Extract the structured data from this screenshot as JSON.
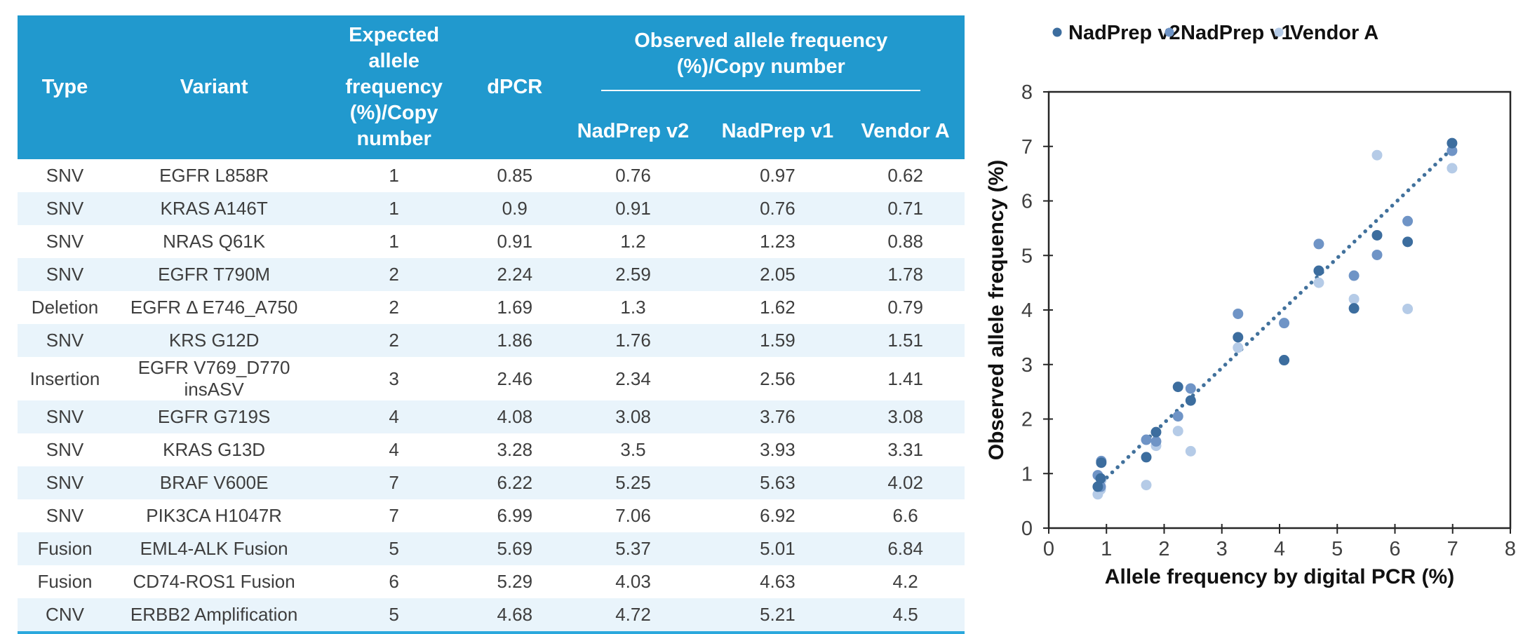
{
  "table": {
    "columns": {
      "type": "Type",
      "variant": "Variant",
      "expected": "Expected allele frequency (%)/Copy number",
      "dpcr": "dPCR"
    },
    "group_header": "Observed allele frequency (%)/Copy number",
    "sub_columns": [
      "NadPrep v2",
      "NadPrep v1",
      "Vendor A"
    ],
    "rows": [
      {
        "type": "SNV",
        "variant": "EGFR L858R",
        "expected": "1",
        "dpcr": "0.85",
        "nadprep_v2": "0.76",
        "nadprep_v1": "0.97",
        "vendor_a": "0.62"
      },
      {
        "type": "SNV",
        "variant": "KRAS A146T",
        "expected": "1",
        "dpcr": "0.9",
        "nadprep_v2": "0.91",
        "nadprep_v1": "0.76",
        "vendor_a": "0.71"
      },
      {
        "type": "SNV",
        "variant": "NRAS Q61K",
        "expected": "1",
        "dpcr": "0.91",
        "nadprep_v2": "1.2",
        "nadprep_v1": "1.23",
        "vendor_a": "0.88"
      },
      {
        "type": "SNV",
        "variant": "EGFR T790M",
        "expected": "2",
        "dpcr": "2.24",
        "nadprep_v2": "2.59",
        "nadprep_v1": "2.05",
        "vendor_a": "1.78"
      },
      {
        "type": "Deletion",
        "variant": "EGFR Δ E746_A750",
        "expected": "2",
        "dpcr": "1.69",
        "nadprep_v2": "1.3",
        "nadprep_v1": "1.62",
        "vendor_a": "0.79"
      },
      {
        "type": "SNV",
        "variant": "KRS G12D",
        "expected": "2",
        "dpcr": "1.86",
        "nadprep_v2": "1.76",
        "nadprep_v1": "1.59",
        "vendor_a": "1.51"
      },
      {
        "type": "Insertion",
        "variant": "EGFR V769_D770 insASV",
        "expected": "3",
        "dpcr": "2.46",
        "nadprep_v2": "2.34",
        "nadprep_v1": "2.56",
        "vendor_a": "1.41"
      },
      {
        "type": "SNV",
        "variant": "EGFR G719S",
        "expected": "4",
        "dpcr": "4.08",
        "nadprep_v2": "3.08",
        "nadprep_v1": "3.76",
        "vendor_a": "3.08"
      },
      {
        "type": "SNV",
        "variant": "KRAS G13D",
        "expected": "4",
        "dpcr": "3.28",
        "nadprep_v2": "3.5",
        "nadprep_v1": "3.93",
        "vendor_a": "3.31"
      },
      {
        "type": "SNV",
        "variant": "BRAF V600E",
        "expected": "7",
        "dpcr": "6.22",
        "nadprep_v2": "5.25",
        "nadprep_v1": "5.63",
        "vendor_a": "4.02"
      },
      {
        "type": "SNV",
        "variant": "PIK3CA H1047R",
        "expected": "7",
        "dpcr": "6.99",
        "nadprep_v2": "7.06",
        "nadprep_v1": "6.92",
        "vendor_a": "6.6"
      },
      {
        "type": "Fusion",
        "variant": "EML4-ALK Fusion",
        "expected": "5",
        "dpcr": "5.69",
        "nadprep_v2": "5.37",
        "nadprep_v1": "5.01",
        "vendor_a": "6.84"
      },
      {
        "type": "Fusion",
        "variant": "CD74-ROS1 Fusion",
        "expected": "6",
        "dpcr": "5.29",
        "nadprep_v2": "4.03",
        "nadprep_v1": "4.63",
        "vendor_a": "4.2"
      },
      {
        "type": "CNV",
        "variant": "ERBB2 Amplification",
        "expected": "5",
        "dpcr": "4.68",
        "nadprep_v2": "4.72",
        "nadprep_v1": "5.21",
        "vendor_a": "4.5"
      }
    ],
    "header_bg_color": "#2199CE",
    "stripe_color": "#E9F4FB",
    "bottom_line_color": "#2BA8DD"
  },
  "chart_data": {
    "type": "scatter",
    "title": "",
    "xlabel": "Allele frequency by digital PCR (%)",
    "ylabel": "Observed allele frequency (%)",
    "xlim": [
      0,
      8
    ],
    "ylim": [
      0,
      8
    ],
    "xticks": [
      0,
      1,
      2,
      3,
      4,
      5,
      6,
      7,
      8
    ],
    "yticks": [
      0,
      1,
      2,
      3,
      4,
      5,
      6,
      7,
      8
    ],
    "grid": false,
    "legend_position": "top",
    "x": [
      0.85,
      0.9,
      0.91,
      2.24,
      1.69,
      1.86,
      2.46,
      4.08,
      3.28,
      6.22,
      6.99,
      5.69,
      5.29,
      4.68
    ],
    "series": [
      {
        "name": "NadPrep v2",
        "color": "#3C6D9E",
        "values": [
          0.76,
          0.91,
          1.2,
          2.59,
          1.3,
          1.76,
          2.34,
          3.08,
          3.5,
          5.25,
          7.06,
          5.37,
          4.03,
          4.72
        ]
      },
      {
        "name": "NadPrep v1",
        "color": "#6F94C6",
        "values": [
          0.97,
          0.76,
          1.23,
          2.05,
          1.62,
          1.59,
          2.56,
          3.76,
          3.93,
          5.63,
          6.92,
          5.01,
          4.63,
          5.21
        ]
      },
      {
        "name": "Vendor A",
        "color": "#B5CBE7",
        "values": [
          0.62,
          0.71,
          0.88,
          1.78,
          0.79,
          1.51,
          1.41,
          3.08,
          3.31,
          4.02,
          6.6,
          6.84,
          4.2,
          4.5
        ]
      }
    ],
    "trendline": {
      "x1": 0.82,
      "y1": 0.74,
      "x2": 7.05,
      "y2": 7.02,
      "color": "#41719C",
      "style": "dotted"
    }
  }
}
